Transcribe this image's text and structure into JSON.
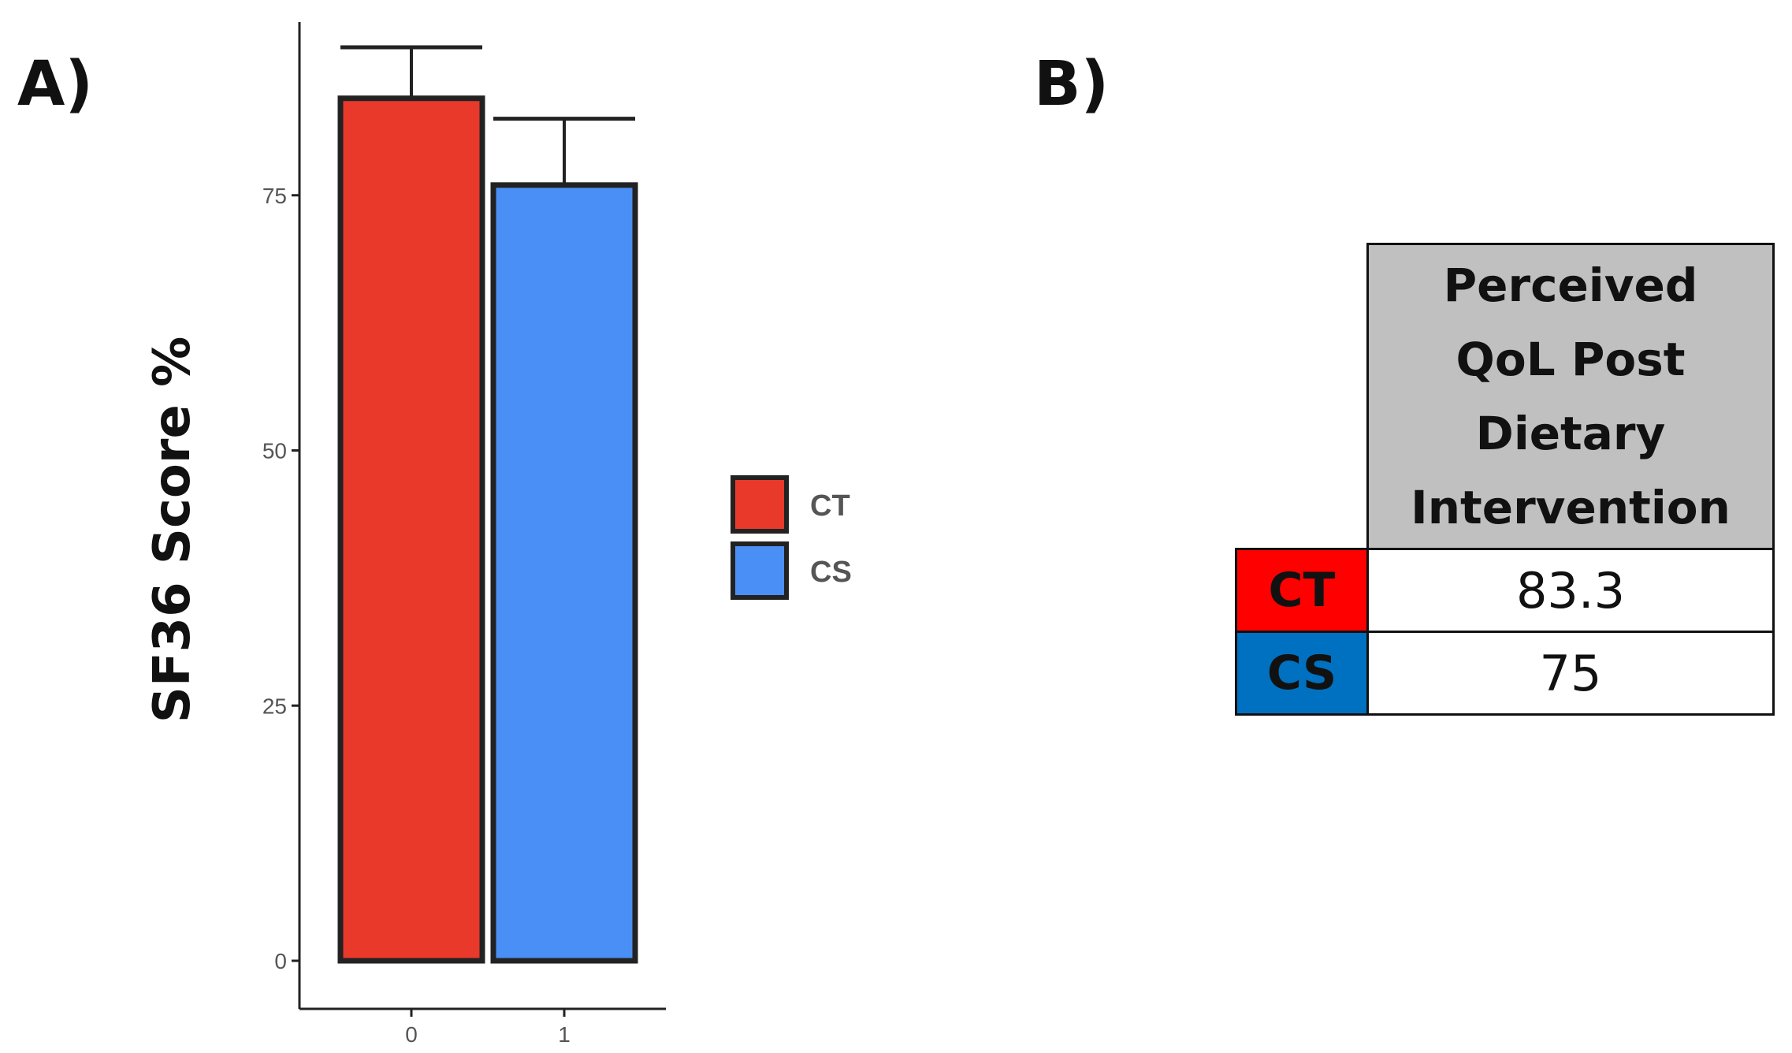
{
  "panels": {
    "a": "A)",
    "b": "B)"
  },
  "chart_data": {
    "type": "bar",
    "categories": [
      "0",
      "1"
    ],
    "values": [
      84.5,
      76
    ],
    "errors": [
      5,
      6.5
    ],
    "ylabel": "SF36 Score %",
    "xlabel": "",
    "ylim": [
      0,
      93
    ],
    "yticks": [
      "0",
      "25",
      "50",
      "75"
    ],
    "legend": {
      "position": "right",
      "entries": [
        "CT",
        "CS"
      ]
    },
    "colors": [
      "#e8392b",
      "#4a8ff5"
    ],
    "grid": false
  },
  "table": {
    "header_lines": [
      "Perceived",
      "QoL Post",
      "Dietary",
      "Intervention"
    ],
    "rows": [
      {
        "group": "CT",
        "value": "83.3",
        "color": "#ff0000"
      },
      {
        "group": "CS",
        "value": "75",
        "color": "#0070c0"
      }
    ]
  }
}
